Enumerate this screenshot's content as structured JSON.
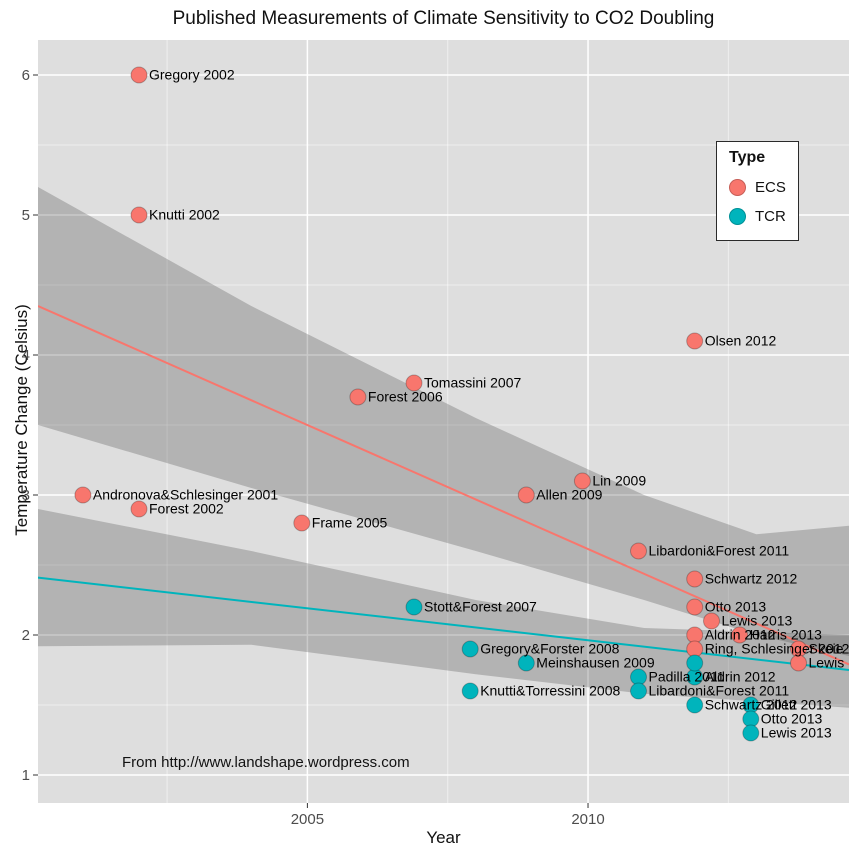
{
  "title": "Published Measurements of Climate Sensitivity to CO2 Doubling",
  "annotation": "From http://www.landshape.wordpress.com",
  "legend": {
    "title": "Type",
    "items": [
      {
        "label": "ECS",
        "color": "#F8766D"
      },
      {
        "label": "TCR",
        "color": "#00B4BC"
      }
    ]
  },
  "chart_data": {
    "type": "scatter",
    "title": "Published Measurements of Climate Sensitivity to CO2 Doubling",
    "xlabel": "Year",
    "ylabel": "Temperature Change (Celsius)",
    "xlim": [
      2000.2,
      2014.65
    ],
    "ylim": [
      0.8,
      6.25
    ],
    "x_ticks": [
      2005,
      2010
    ],
    "x_minor_ticks": [
      2002.5,
      2007.5,
      2012.5
    ],
    "y_ticks": [
      1,
      2,
      3,
      4,
      5,
      6
    ],
    "y_minor_ticks": [
      1.5,
      2.5,
      3.5,
      4.5,
      5.5
    ],
    "grid": true,
    "legend_position": "inside-top-right",
    "panel_color": "#DEDEDE",
    "grid_major_color": "#FFFFFF",
    "grid_minor_color": "rgba(255,255,255,0.5)",
    "ribbon_color": "rgba(80,80,80,0.30)",
    "series": [
      {
        "name": "ECS",
        "color": "#F8766D",
        "points": [
          {
            "x": 2001.0,
            "y": 3.0,
            "label": "Andronova&Schlesinger 2001"
          },
          {
            "x": 2002.0,
            "y": 6.0,
            "label": "Gregory 2002"
          },
          {
            "x": 2002.0,
            "y": 5.0,
            "label": "Knutti 2002"
          },
          {
            "x": 2002.0,
            "y": 2.9,
            "label": "Forest 2002"
          },
          {
            "x": 2004.9,
            "y": 2.8,
            "label": "Frame 2005"
          },
          {
            "x": 2005.9,
            "y": 3.7,
            "label": "Forest 2006"
          },
          {
            "x": 2006.9,
            "y": 3.8,
            "label": "Tomassini 2007"
          },
          {
            "x": 2008.9,
            "y": 3.0,
            "label": "Allen 2009"
          },
          {
            "x": 2009.9,
            "y": 3.1,
            "label": "Lin 2009"
          },
          {
            "x": 2010.9,
            "y": 2.6,
            "label": "Libardoni&Forest 2011"
          },
          {
            "x": 2011.9,
            "y": 4.1,
            "label": "Olsen 2012"
          },
          {
            "x": 2011.9,
            "y": 2.4,
            "label": "Schwartz 2012"
          },
          {
            "x": 2011.9,
            "y": 2.2,
            "label": "Otto 2013"
          },
          {
            "x": 2012.2,
            "y": 2.1,
            "label": "Lewis 2013"
          },
          {
            "x": 2011.9,
            "y": 2.0,
            "label": "Aldrin 2012"
          },
          {
            "x": 2012.7,
            "y": 2.0,
            "label": "Harris 2013"
          },
          {
            "x": 2011.9,
            "y": 1.9,
            "label": "Ring, Schlesinger 2012"
          },
          {
            "x": 2013.75,
            "y": 1.9,
            "label": "Skeie"
          },
          {
            "x": 2013.75,
            "y": 1.8,
            "label": "Lewis"
          }
        ]
      },
      {
        "name": "TCR",
        "color": "#00B4BC",
        "points": [
          {
            "x": 2006.9,
            "y": 2.2,
            "label": "Stott&Forest 2007"
          },
          {
            "x": 2007.9,
            "y": 1.9,
            "label": "Gregory&Forster 2008"
          },
          {
            "x": 2007.9,
            "y": 1.6,
            "label": "Knutti&Torressini 2008"
          },
          {
            "x": 2008.9,
            "y": 1.8,
            "label": "Meinshausen 2009"
          },
          {
            "x": 2010.9,
            "y": 1.7,
            "label": "Padilla 2011"
          },
          {
            "x": 2011.9,
            "y": 1.7,
            "label": "Aldrin 2012"
          },
          {
            "x": 2011.9,
            "y": 1.8,
            "label": ""
          },
          {
            "x": 2010.9,
            "y": 1.6,
            "label": "Libardoni&Forest 2011"
          },
          {
            "x": 2011.9,
            "y": 1.5,
            "label": "Schwartz 2012"
          },
          {
            "x": 2012.9,
            "y": 1.5,
            "label": "Gillett 2013"
          },
          {
            "x": 2012.9,
            "y": 1.4,
            "label": "Otto 2013"
          },
          {
            "x": 2012.9,
            "y": 1.3,
            "label": "Lewis 2013"
          }
        ]
      }
    ],
    "trend_lines": [
      {
        "series": "ECS",
        "color": "#F8766D",
        "x": [
          2000.2,
          2014.65
        ],
        "y": [
          4.35,
          1.79
        ]
      },
      {
        "series": "TCR",
        "color": "#00B4BC",
        "x": [
          2000.2,
          2014.65
        ],
        "y": [
          2.41,
          1.75
        ]
      }
    ],
    "ribbons": [
      {
        "series": "ECS",
        "top": [
          [
            2000.2,
            5.2
          ],
          [
            2004,
            4.35
          ],
          [
            2008,
            3.55
          ],
          [
            2011,
            3.0
          ],
          [
            2013,
            2.72
          ],
          [
            2014.65,
            2.78
          ]
        ],
        "bottom": [
          [
            2000.2,
            3.5
          ],
          [
            2004,
            3.05
          ],
          [
            2008,
            2.6
          ],
          [
            2011,
            2.25
          ],
          [
            2013,
            2.0
          ],
          [
            2014.65,
            1.85
          ]
        ]
      },
      {
        "series": "TCR",
        "top": [
          [
            2000.2,
            2.9
          ],
          [
            2004,
            2.6
          ],
          [
            2008,
            2.25
          ],
          [
            2011,
            2.05
          ],
          [
            2014.65,
            2.0
          ]
        ],
        "bottom": [
          [
            2000.2,
            1.92
          ],
          [
            2004,
            1.93
          ],
          [
            2008,
            1.72
          ],
          [
            2011,
            1.58
          ],
          [
            2014.65,
            1.48
          ]
        ]
      }
    ]
  }
}
